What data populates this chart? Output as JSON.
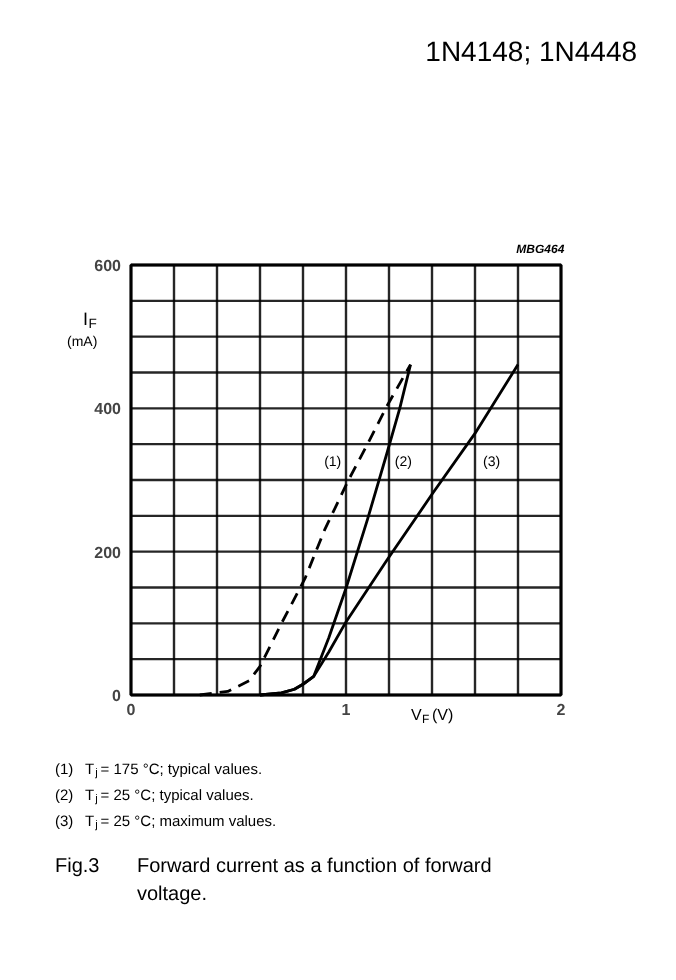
{
  "chart_data": {
    "type": "line",
    "title": "1N4148; 1N4448",
    "xlabel": "V$_{F}$ (V)",
    "ylabel": "I$_{F}$ (mA)",
    "annotations": [
      "MBG464",
      "(1) T$_{j}$ = 175 °C; typical values.",
      "(2) T$_{j}$ = 25 °C; typical values.",
      "(3) T$_{j}$ = 25 °C; maximum values.",
      "Fig.3 Forward current as a function of forward voltage."
    ],
    "xlim": [
      0,
      2
    ],
    "ylim": [
      0,
      600
    ],
    "xticks": [
      0,
      {
        "value": 0.2,
        "label": null
      },
      {
        "value": 0.4,
        "label": null
      },
      {
        "value": 0.6,
        "label": null
      },
      {
        "value": 0.8,
        "label": null
      },
      1,
      {
        "value": 1.2,
        "label": null
      },
      {
        "value": 1.4,
        "label": null
      },
      {
        "value": 1.6,
        "label": null
      },
      {
        "value": 1.8,
        "label": null
      },
      2
    ],
    "yticks": [
      0,
      {
        "value": 50,
        "label": null
      },
      {
        "value": 100,
        "label": null
      },
      {
        "value": 150,
        "label": null
      },
      200,
      {
        "value": 250,
        "label": null
      },
      {
        "value": 300,
        "label": null
      },
      {
        "value": 350,
        "label": null
      },
      400,
      {
        "value": 450,
        "label": null
      },
      {
        "value": 500,
        "label": null
      },
      {
        "value": 550,
        "label": null
      },
      600
    ],
    "grid": true,
    "marker": "none",
    "series": [
      {
        "name": "(1)",
        "color": "#000000",
        "line_style": "dashed",
        "x": [
          0.32,
          0.45,
          0.55,
          0.6,
          0.7,
          0.81,
          0.9,
          1.01,
          1.1,
          1.19,
          1.3
        ],
        "values": [
          0,
          5,
          20,
          40,
          100,
          163,
          230,
          299,
          350,
          403,
          461
        ]
      },
      {
        "name": "(2)",
        "color": "#000000",
        "line_style": "solid",
        "x": [
          0.6,
          0.7,
          0.76,
          0.8,
          0.85,
          0.92,
          1.0,
          1.1,
          1.19,
          1.25,
          1.3
        ],
        "values": [
          0,
          3,
          8,
          15,
          26,
          80,
          149,
          245,
          337,
          400,
          461
        ]
      },
      {
        "name": "(3)",
        "color": "#000000",
        "line_style": "solid",
        "x": [
          0.6,
          0.7,
          0.76,
          0.8,
          0.85,
          0.92,
          1.0,
          1.19,
          1.4,
          1.6,
          1.8
        ],
        "values": [
          0,
          3,
          8,
          15,
          26,
          60,
          102,
          188,
          280,
          365,
          461
        ]
      }
    ]
  }
}
